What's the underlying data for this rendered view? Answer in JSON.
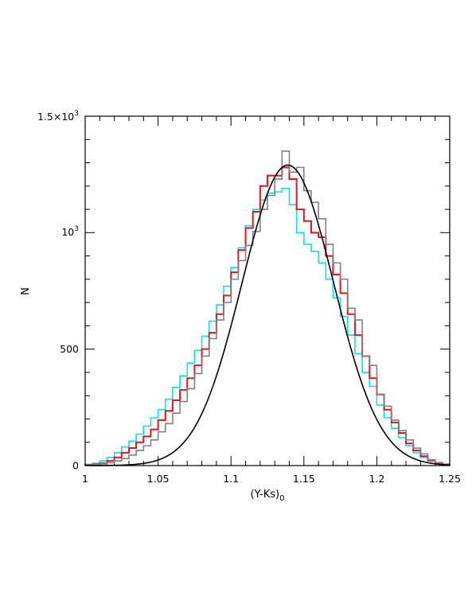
{
  "chart_data": {
    "type": "line",
    "xlabel": "(Y-Ks)",
    "xlabel_subscript": "0",
    "ylabel": "N",
    "xlim": [
      1.0,
      1.25
    ],
    "ylim": [
      0,
      1500
    ],
    "x_tick_labels": [
      "1",
      "1.05",
      "1.1",
      "1.15",
      "1.2",
      "1.25"
    ],
    "x_ticks": [
      1.0,
      1.05,
      1.1,
      1.15,
      1.2,
      1.25
    ],
    "y_ticks": [
      0,
      500,
      1000,
      1500
    ],
    "y_tick_labels": {
      "zero": "0",
      "five_hundred": "500",
      "thousand_base": "10",
      "thousand_exp": "3",
      "top_base": "1.5×10",
      "top_exp": "3"
    },
    "bin_width": 0.005,
    "series": [
      {
        "kind": "histogram",
        "color": "#00e5ee",
        "x": [
          1.0,
          1.005,
          1.01,
          1.015,
          1.02,
          1.025,
          1.03,
          1.035,
          1.04,
          1.045,
          1.05,
          1.055,
          1.06,
          1.065,
          1.07,
          1.075,
          1.08,
          1.085,
          1.09,
          1.095,
          1.1,
          1.105,
          1.11,
          1.115,
          1.12,
          1.125,
          1.13,
          1.135,
          1.14,
          1.145,
          1.15,
          1.155,
          1.16,
          1.165,
          1.17,
          1.175,
          1.18,
          1.185,
          1.19,
          1.195,
          1.2,
          1.205,
          1.21,
          1.215,
          1.22,
          1.225,
          1.23,
          1.235,
          1.24,
          1.245
        ],
        "y": [
          5,
          10,
          20,
          35,
          55,
          80,
          105,
          135,
          170,
          205,
          240,
          285,
          335,
          385,
          440,
          495,
          555,
          620,
          690,
          770,
          850,
          935,
          1030,
          1100,
          1140,
          1170,
          1175,
          1190,
          1120,
          1000,
          950,
          920,
          870,
          800,
          720,
          640,
          560,
          480,
          400,
          340,
          260,
          205,
          160,
          120,
          85,
          55,
          35,
          20,
          10,
          5
        ]
      },
      {
        "kind": "histogram",
        "color": "#e8131a",
        "x": [
          1.0,
          1.005,
          1.01,
          1.015,
          1.02,
          1.025,
          1.03,
          1.035,
          1.04,
          1.045,
          1.05,
          1.055,
          1.06,
          1.065,
          1.07,
          1.075,
          1.08,
          1.085,
          1.09,
          1.095,
          1.1,
          1.105,
          1.11,
          1.115,
          1.12,
          1.125,
          1.13,
          1.135,
          1.14,
          1.145,
          1.15,
          1.155,
          1.16,
          1.165,
          1.17,
          1.175,
          1.18,
          1.185,
          1.19,
          1.195,
          1.2,
          1.205,
          1.21,
          1.215,
          1.22,
          1.225,
          1.23,
          1.235,
          1.24,
          1.245
        ],
        "y": [
          3,
          5,
          10,
          20,
          35,
          55,
          75,
          100,
          125,
          155,
          195,
          235,
          280,
          325,
          375,
          430,
          500,
          570,
          650,
          730,
          830,
          925,
          1020,
          1090,
          1200,
          1245,
          1245,
          1280,
          1230,
          1100,
          1050,
          1000,
          980,
          900,
          820,
          740,
          650,
          560,
          470,
          375,
          305,
          240,
          185,
          140,
          95,
          65,
          40,
          22,
          12,
          5
        ]
      },
      {
        "kind": "histogram",
        "color": "#808080",
        "x": [
          1.0,
          1.005,
          1.01,
          1.015,
          1.02,
          1.025,
          1.03,
          1.035,
          1.04,
          1.045,
          1.05,
          1.055,
          1.06,
          1.065,
          1.07,
          1.075,
          1.08,
          1.085,
          1.09,
          1.095,
          1.1,
          1.105,
          1.11,
          1.115,
          1.12,
          1.125,
          1.13,
          1.135,
          1.14,
          1.145,
          1.15,
          1.155,
          1.16,
          1.165,
          1.17,
          1.175,
          1.18,
          1.185,
          1.19,
          1.195,
          1.2,
          1.205,
          1.21,
          1.215,
          1.22,
          1.225,
          1.23,
          1.235,
          1.24,
          1.245
        ],
        "y": [
          2,
          4,
          7,
          12,
          20,
          30,
          45,
          65,
          85,
          110,
          145,
          180,
          225,
          275,
          330,
          395,
          470,
          545,
          625,
          700,
          800,
          880,
          945,
          1005,
          1100,
          1160,
          1230,
          1350,
          1260,
          1280,
          1180,
          1130,
          1060,
          950,
          870,
          800,
          675,
          625,
          470,
          430,
          305,
          255,
          195,
          150,
          110,
          75,
          50,
          25,
          12,
          5
        ]
      },
      {
        "kind": "gaussian-fit",
        "color": "#000000",
        "amplitude": 1290,
        "mean": 1.139,
        "sigma": 0.0315
      }
    ]
  }
}
